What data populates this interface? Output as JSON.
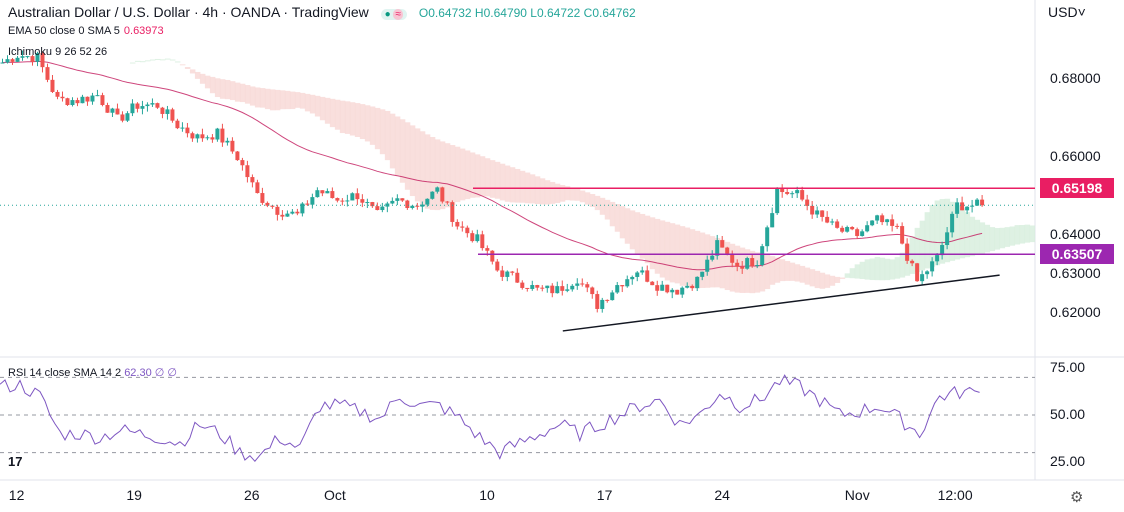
{
  "header": {
    "title": "Australian Dollar / U.S. Dollar · 4h · OANDA · TradingView",
    "ohlc": "O0.64732 H0.64790 L0.64722 C0.64762",
    "market_status_icon": "dot-icon",
    "ema_label": "EMA 50 close 0 SMA 5",
    "ema_value": "0.63973",
    "ichimoku_label": "Ichimoku 9 26 52 26",
    "rsi_label": "RSI 14 close SMA 14 2",
    "rsi_value": "62.30",
    "rsi_extra": "∅ ∅"
  },
  "currency": "USD",
  "logo": "TV",
  "colors": {
    "up": "#26a69a",
    "down": "#ef5350",
    "ema": "#c2185b",
    "resistance": "#e91e63",
    "support": "#9c27b0",
    "rsi": "#7e57c2",
    "cloud": "#f8d7d5",
    "cloud_green": "#d6eedc"
  },
  "chart_data": {
    "type": "candlestick",
    "interval": "4h",
    "price_ticks": [
      "0.68000",
      "0.66000",
      "0.64000",
      "0.63000",
      "0.62000"
    ],
    "price_tick_values": [
      0.68,
      0.66,
      0.64,
      0.63,
      0.62
    ],
    "time_ticks": [
      "12",
      "19",
      "26",
      "Oct",
      "10",
      "17",
      "24",
      "Nov",
      "12:00"
    ],
    "time_tick_days": [
      1,
      8,
      15,
      20,
      29,
      36,
      43,
      51,
      57
    ],
    "day_start": "Sep 11",
    "closes": [
      0.6836,
      0.6862,
      0.6855,
      0.6746,
      0.6746,
      0.6759,
      0.6695,
      0.6733,
      0.6733,
      0.6682,
      0.665,
      0.666,
      0.66,
      0.6503,
      0.6464,
      0.6451,
      0.6515,
      0.649,
      0.6503,
      0.645,
      0.649,
      0.6477,
      0.6515,
      0.6426,
      0.6387,
      0.631,
      0.6285,
      0.6259,
      0.6259,
      0.629,
      0.6221,
      0.6272,
      0.631,
      0.6272,
      0.6259,
      0.6285,
      0.6374,
      0.6323,
      0.6336,
      0.6515,
      0.6503,
      0.6451,
      0.6413,
      0.64,
      0.6438,
      0.6413,
      0.628,
      0.634,
      0.6477,
      0.6476
    ],
    "closes_step_days": 1.19,
    "resistance": {
      "value": 0.65198,
      "label": "0.65198"
    },
    "support": {
      "value": 0.63507,
      "label": "0.63507"
    },
    "trendline": {
      "from": {
        "day": 33.5,
        "price": 0.6154
      },
      "to": {
        "day": 59.5,
        "price": 0.6297
      }
    },
    "last_price": 0.64762,
    "rsi": {
      "ticks": [
        "75.00",
        "50.00",
        "25.00"
      ],
      "tick_values": [
        75,
        50,
        25
      ],
      "bands": [
        70,
        50,
        30
      ],
      "values": [
        65,
        66,
        60,
        40,
        40,
        38,
        42,
        40,
        38,
        35,
        45,
        40,
        30,
        28,
        38,
        32,
        55,
        55,
        52,
        48,
        60,
        55,
        55,
        48,
        38,
        30,
        35,
        40,
        45,
        40,
        45,
        50,
        55,
        58,
        45,
        50,
        62,
        55,
        58,
        68,
        65,
        58,
        50,
        52,
        55,
        48,
        40,
        60,
        62,
        62
      ]
    }
  }
}
